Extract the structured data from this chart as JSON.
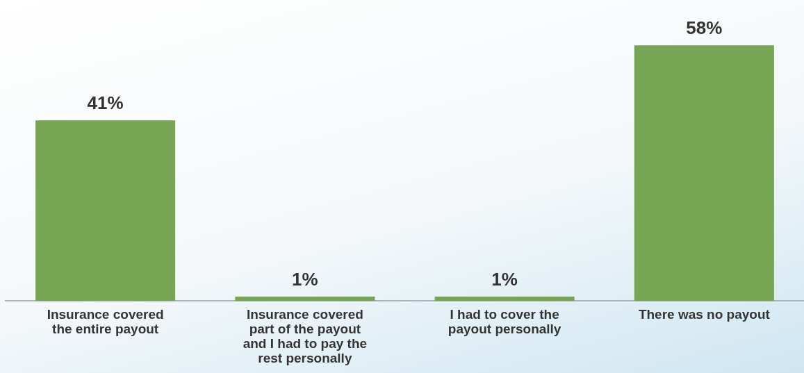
{
  "chart_data": {
    "type": "bar",
    "relative": false,
    "categories": [
      "Insurance covered the entire payout",
      "Insurance covered part of the payout and I had to pay the rest personally",
      "I had to cover the payout personally",
      "There was no payout"
    ],
    "values": [
      41,
      1,
      1,
      58
    ],
    "value_labels": [
      "41%",
      "1%",
      "1%",
      "58%"
    ],
    "color": "#76a654",
    "grid": false,
    "legend": false
  }
}
